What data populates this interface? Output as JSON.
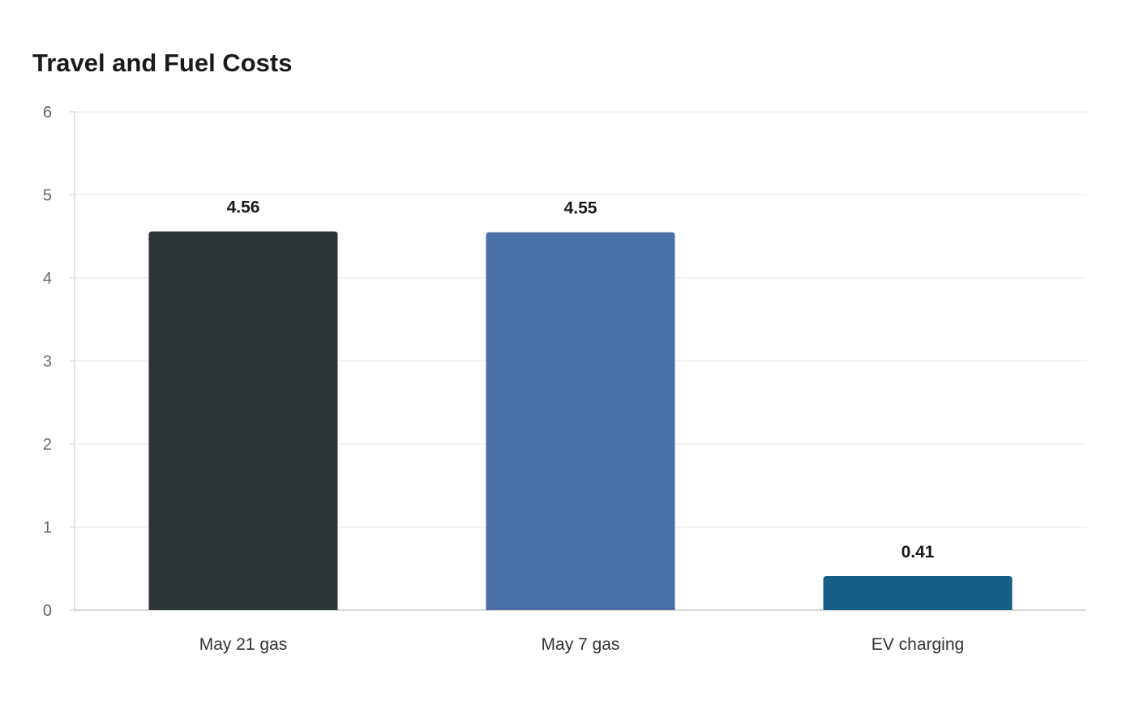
{
  "chart_data": {
    "type": "bar",
    "title": "Travel and Fuel Costs",
    "xlabel": "",
    "ylabel": "",
    "categories": [
      "May 21 gas",
      "May 7 gas",
      "EV charging"
    ],
    "values": [
      4.56,
      4.55,
      0.41
    ],
    "value_labels": [
      "4.56",
      "4.55",
      "0.41"
    ],
    "colors": [
      "#2d3436",
      "#4a6fa5",
      "#166088"
    ],
    "ylim": [
      0,
      6
    ],
    "yticks": [
      0,
      1,
      2,
      3,
      4,
      5,
      6
    ],
    "grid": true,
    "legend": "none"
  }
}
